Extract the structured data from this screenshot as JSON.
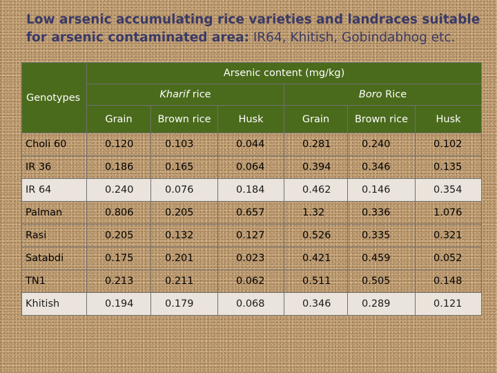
{
  "title": {
    "bold_part": "Low arsenic accumulating rice varieties and landraces suitable for arsenic contaminated area:",
    "normal_part": "IR64, Khitish, Gobindabhog etc."
  },
  "table": {
    "genotypes_header": "Genotypes",
    "main_header": "Arsenic content (mg/kg)",
    "kharif_italic": "Kharif",
    "kharif_rest": " rice",
    "boro_italic": "Boro",
    "boro_rest": " Rice",
    "sub_headers": [
      "Grain",
      "Brown rice",
      "Husk",
      "Grain",
      "Brown rice",
      "Husk"
    ],
    "rows": [
      {
        "name": "Choli 60",
        "values": [
          "0.120",
          "0.103",
          "0.044",
          "0.281",
          "0.240",
          "0.102"
        ],
        "light": false
      },
      {
        "name": "IR 36",
        "values": [
          "0.186",
          "0.165",
          "0.064",
          "0.394",
          "0.346",
          "0.135"
        ],
        "light": false
      },
      {
        "name": "IR 64",
        "values": [
          "0.240",
          "0.076",
          "0.184",
          "0.462",
          "0.146",
          "0.354"
        ],
        "light": true
      },
      {
        "name": "Palman",
        "values": [
          "0.806",
          "0.205",
          "0.657",
          "1.32",
          "0.336",
          "1.076"
        ],
        "light": false
      },
      {
        "name": "Rasi",
        "values": [
          "0.205",
          "0.132",
          "0.127",
          "0.526",
          "0.335",
          "0.321"
        ],
        "light": false
      },
      {
        "name": "Satabdi",
        "values": [
          "0.175",
          "0.201",
          "0.023",
          "0.421",
          "0.459",
          "0.052"
        ],
        "light": false
      },
      {
        "name": "TN1",
        "values": [
          "0.213",
          "0.211",
          "0.062",
          "0.511",
          "0.505",
          "0.148"
        ],
        "light": false
      },
      {
        "name": "Khitish",
        "values": [
          "0.194",
          "0.179",
          "0.068",
          "0.346",
          "0.289",
          "0.121"
        ],
        "light": true
      }
    ]
  }
}
